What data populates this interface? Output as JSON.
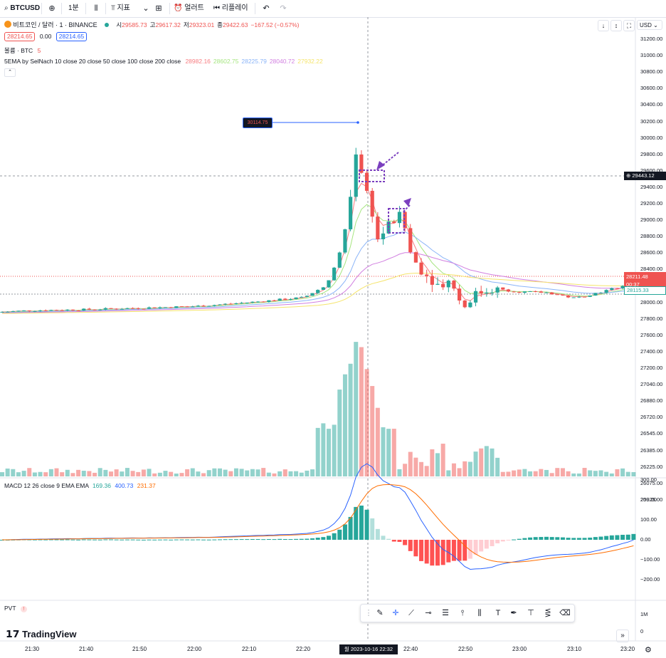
{
  "toolbar": {
    "symbol": "BTCUSD",
    "interval": "1분",
    "indicators": "지표",
    "alert": "얼러트",
    "replay": "리플레이"
  },
  "header": {
    "title": "비트코인 / 달러 · 1 · BINANCE",
    "ohlc": [
      {
        "k": "시",
        "v": "29585.73"
      },
      {
        "k": "고",
        "v": "29617.32"
      },
      {
        "k": "저",
        "v": "29323.01"
      },
      {
        "k": "종",
        "v": "29422.63"
      },
      {
        "k": "",
        "v": "−167.52 (−0.57%)"
      }
    ],
    "sell_price": "28214.65",
    "spread": "0.00",
    "buy_price": "28214.65",
    "currency": "USD"
  },
  "legend": {
    "volume": "볼륨 · BTC",
    "volume_val": "5",
    "ema_name": "5EMA by SelNach 10 close 20 close 50 close 100 close 200 close",
    "ema_values": [
      "28982.16",
      "28602.75",
      "28225.79",
      "28040.72",
      "27932.22"
    ],
    "macd_name": "MACD 12 26 close 9 EMA EMA",
    "macd_values": [
      "169.36",
      "400.73",
      "231.37"
    ],
    "pvt": "PVT"
  },
  "colors": {
    "up": "#26a69a",
    "down": "#ef5350",
    "ema": [
      "#f77c80",
      "#a6e580",
      "#8ab4f8",
      "#d17fe0",
      "#f5e46b"
    ]
  },
  "tags": {
    "crosshair_price": "29443.12",
    "last_price": "28211.48",
    "countdown": "00:37",
    "ema_tag": "28115.33",
    "peak_label": "30114.75",
    "crosshair_time": "월 2023-10-16   22:32"
  },
  "price_axis": [
    "31200.00",
    "31000.00",
    "30800.00",
    "30600.00",
    "30400.00",
    "30200.00",
    "30000.00",
    "29800.00",
    "29600.00",
    "29400.00",
    "29200.00",
    "29000.00",
    "28800.00",
    "28600.00",
    "28400.00",
    "28200.00",
    "28000.00",
    "27800.00",
    "27600.00",
    "27400.00",
    "27200.00",
    "27040.00",
    "26880.00",
    "26720.00",
    "26545.00",
    "26385.00",
    "26225.00",
    "26075.00",
    "25925.00"
  ],
  "macd_axis": [
    "300.00",
    "200.00",
    "100.00",
    "0.00",
    "−100.00",
    "−200.00"
  ],
  "pvt_axis": [
    "1M",
    "0"
  ],
  "time_axis": [
    "21:30",
    "21:40",
    "21:50",
    "22:00",
    "22:10",
    "22:20",
    "22:40",
    "22:50",
    "23:00",
    "23:10",
    "23:20"
  ],
  "branding": "TradingView",
  "chart_data": {
    "type": "candlestick",
    "title": "비트코인 / 달러 · 1 · BINANCE",
    "ylim": [
      27300,
      31300
    ],
    "x": [
      "21:25",
      "21:30",
      "21:40",
      "21:50",
      "22:00",
      "22:10",
      "22:20",
      "22:25",
      "22:28",
      "22:30",
      "22:31",
      "22:32",
      "22:33",
      "22:34",
      "22:36",
      "22:38",
      "22:40",
      "22:42",
      "22:45",
      "22:48",
      "22:50",
      "22:52",
      "22:55",
      "23:00",
      "23:05",
      "23:10",
      "23:15",
      "23:20",
      "23:22"
    ],
    "close": [
      27810,
      27830,
      27840,
      27860,
      27880,
      27930,
      27990,
      28150,
      28600,
      29300,
      29950,
      29430,
      29200,
      28700,
      28900,
      29020,
      28500,
      28300,
      28150,
      28200,
      27850,
      28020,
      28100,
      28060,
      28050,
      27980,
      28050,
      28150,
      28211
    ],
    "volume_peak_time": "22:31",
    "macd_range": [
      -250,
      300
    ],
    "macd_peak": 300,
    "macd_trough": -130
  }
}
